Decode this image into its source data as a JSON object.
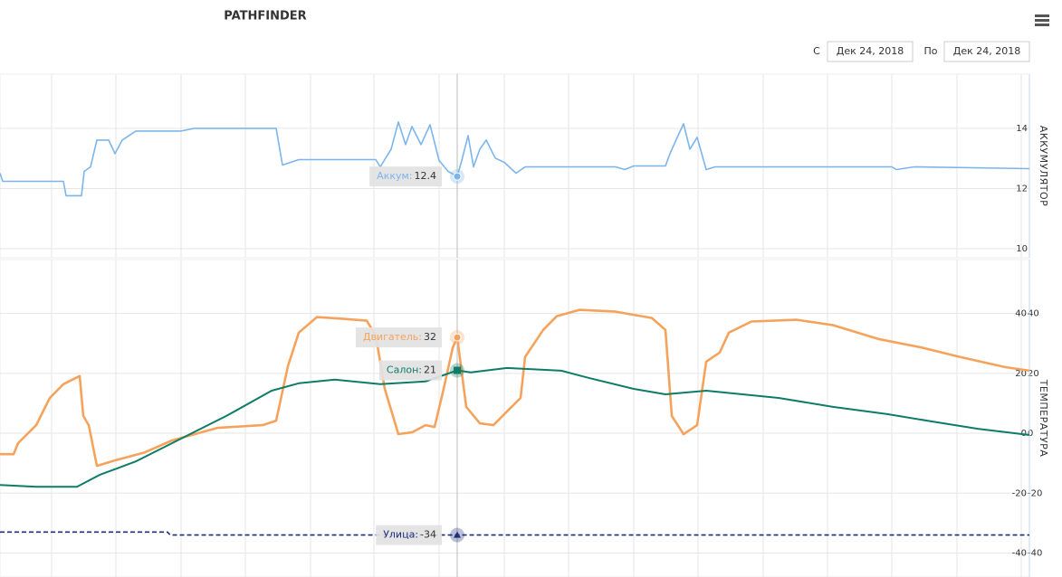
{
  "header": {
    "title": "PATHFINDER",
    "from_label": "С",
    "from_date": "Дек 24, 2018",
    "to_label": "По",
    "to_date": "Дек 24, 2018"
  },
  "chart_data": [
    {
      "type": "line",
      "y_label": "АККУМУЛЯТОР",
      "xlim": [
        0,
        1137
      ],
      "xticks": [
        57,
        128,
        200,
        271,
        343,
        413,
        485,
        557,
        628,
        700,
        771,
        843,
        914,
        985,
        1057,
        1128
      ],
      "ylim": [
        9.7,
        15.8
      ],
      "yticks": [
        10,
        12,
        14
      ],
      "grid": true,
      "tooltip_x": 505,
      "series": [
        {
          "tooltip_label": "Аккум:",
          "tooltip_value": 12.4,
          "color": "#7cb5ec",
          "width": 1.6,
          "dash": false,
          "marker": "circle",
          "x": [
            0,
            3,
            70,
            73,
            90,
            93,
            100,
            107,
            120,
            127,
            135,
            150,
            200,
            215,
            305,
            312,
            330,
            415,
            420,
            432,
            440,
            448,
            455,
            465,
            475,
            485,
            495,
            505,
            510,
            517,
            523,
            530,
            537,
            547,
            557,
            570,
            580,
            680,
            690,
            700,
            735,
            740,
            748,
            755,
            762,
            770,
            780,
            790,
            985,
            990,
            1010,
            1137
          ],
          "values": [
            12.51,
            12.24,
            12.24,
            11.76,
            11.76,
            12.57,
            12.72,
            13.61,
            13.61,
            13.16,
            13.61,
            13.91,
            13.91,
            14.0,
            14.0,
            12.78,
            12.96,
            12.96,
            12.72,
            13.31,
            14.21,
            13.46,
            14.06,
            13.46,
            14.12,
            12.93,
            12.57,
            12.4,
            12.93,
            13.76,
            12.72,
            13.31,
            13.61,
            13.01,
            12.87,
            12.51,
            12.72,
            12.72,
            12.63,
            12.75,
            12.75,
            13.16,
            13.7,
            14.15,
            13.31,
            13.7,
            12.63,
            12.72,
            12.72,
            12.63,
            12.72,
            12.66
          ]
        }
      ]
    },
    {
      "type": "line",
      "y_label": "ТЕМПЕРАТУРА",
      "xlim": [
        0,
        1137
      ],
      "xticks": [
        57,
        128,
        200,
        271,
        343,
        413,
        485,
        557,
        628,
        700,
        771,
        843,
        914,
        985,
        1057,
        1128
      ],
      "ylim": [
        -48,
        58
      ],
      "yticks": [
        -40,
        -20,
        0,
        20,
        40
      ],
      "y2lim": [
        -48,
        58
      ],
      "y2ticks": [
        -40,
        -20,
        0,
        20,
        40
      ],
      "grid": true,
      "tooltip_x": 505,
      "series": [
        {
          "tooltip_label": "Двигатель:",
          "tooltip_value": 32,
          "color": "#f5a35c",
          "width": 2.6,
          "dash": false,
          "marker": "circle",
          "x": [
            0,
            15,
            20,
            40,
            55,
            70,
            88,
            92,
            98,
            107,
            130,
            160,
            190,
            240,
            290,
            305,
            318,
            330,
            350,
            380,
            405,
            415,
            425,
            440,
            455,
            470,
            480,
            490,
            500,
            505,
            515,
            530,
            545,
            560,
            575,
            580,
            600,
            615,
            640,
            680,
            720,
            735,
            742,
            755,
            770,
            780,
            795,
            805,
            830,
            880,
            920,
            970,
            1020,
            1060,
            1110,
            1137
          ],
          "values": [
            -7,
            -7,
            -3.3,
            2.7,
            11.8,
            16.4,
            19.1,
            5.8,
            2.7,
            -10.9,
            -8.8,
            -6.4,
            -2.4,
            1.8,
            2.7,
            4.2,
            22.4,
            33.6,
            38.8,
            38.2,
            37.6,
            32.7,
            14.8,
            -0.3,
            0.3,
            2.7,
            2.1,
            14.8,
            28.5,
            32,
            8.8,
            3.3,
            2.7,
            7.3,
            11.8,
            25.5,
            34.5,
            39.1,
            41.2,
            40.6,
            38.5,
            34.5,
            5.8,
            -0.3,
            2.7,
            23.9,
            27,
            33.6,
            37.3,
            37.9,
            36.1,
            31.5,
            28.5,
            25.5,
            22.1,
            20.9
          ]
        },
        {
          "tooltip_label": "Салон:",
          "tooltip_value": 21,
          "color": "#0e7c66",
          "width": 2,
          "dash": false,
          "marker": "square",
          "x": [
            0,
            40,
            85,
            110,
            150,
            200,
            250,
            300,
            330,
            370,
            420,
            470,
            505,
            520,
            560,
            620,
            650,
            700,
            735,
            780,
            820,
            860,
            920,
            980,
            1030,
            1080,
            1137
          ],
          "values": [
            -17.3,
            -17.9,
            -17.9,
            -13.9,
            -9.4,
            -1.8,
            5.8,
            14.2,
            16.7,
            17.9,
            16.4,
            17.3,
            21,
            20.3,
            21.8,
            20.9,
            18.5,
            14.8,
            13,
            14.2,
            13,
            11.8,
            8.8,
            6.4,
            3.9,
            1.5,
            -0.6
          ]
        },
        {
          "tooltip_label": "Улица:",
          "tooltip_value": -34,
          "color": "#1f2d7a",
          "width": 1.6,
          "dash": true,
          "marker": "triangle",
          "x": [
            0,
            185,
            188,
            1137
          ],
          "values": [
            -33,
            -33,
            -34,
            -34
          ]
        }
      ]
    }
  ]
}
